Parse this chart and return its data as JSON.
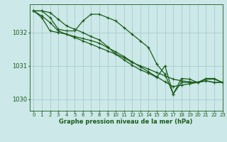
{
  "title": "Graphe pression niveau de la mer (hPa)",
  "background_color": "#cce8e8",
  "grid_color": "#aacccc",
  "line_color": "#1a5c1a",
  "xlim": [
    -0.5,
    23
  ],
  "ylim": [
    1029.65,
    1032.85
  ],
  "yticks": [
    1030,
    1031,
    1032
  ],
  "xticks": [
    0,
    1,
    2,
    3,
    4,
    5,
    6,
    7,
    8,
    9,
    10,
    11,
    12,
    13,
    14,
    15,
    16,
    17,
    18,
    19,
    20,
    21,
    22,
    23
  ],
  "series": [
    [
      1032.65,
      1032.65,
      1032.45,
      1032.1,
      1032.05,
      1032.05,
      1032.35,
      1032.55,
      1032.55,
      1032.45,
      1032.35,
      1032.15,
      1031.95,
      1031.75,
      1031.55,
      1031.05,
      1030.75,
      1030.15,
      1030.5,
      1030.5,
      1030.5,
      1030.6,
      1030.6,
      1030.5
    ],
    [
      1032.65,
      1032.5,
      1032.3,
      1032.05,
      1031.95,
      1031.85,
      1031.75,
      1031.65,
      1031.55,
      1031.45,
      1031.35,
      1031.25,
      1031.1,
      1031.0,
      1030.9,
      1030.8,
      1030.7,
      1030.6,
      1030.55,
      1030.52,
      1030.5,
      1030.55,
      1030.5,
      1030.5
    ],
    [
      1032.65,
      1032.45,
      1032.05,
      1032.0,
      1031.95,
      1031.88,
      1031.82,
      1031.76,
      1031.68,
      1031.55,
      1031.42,
      1031.28,
      1031.12,
      1030.97,
      1030.82,
      1030.67,
      1030.52,
      1030.38,
      1030.42,
      1030.46,
      1030.5,
      1030.55,
      1030.5,
      1030.5
    ],
    [
      1032.65,
      1032.65,
      1032.6,
      1032.4,
      1032.2,
      1032.1,
      1032.0,
      1031.88,
      1031.78,
      1031.58,
      1031.35,
      1031.18,
      1031.02,
      1030.88,
      1030.78,
      1030.65,
      1031.0,
      1030.15,
      1030.62,
      1030.6,
      1030.5,
      1030.62,
      1030.62,
      1030.5
    ]
  ],
  "ylabel_fontsize": 6,
  "xlabel_fontsize": 6,
  "tick_fontsize": 5,
  "linewidth": 0.9,
  "markersize": 2.8
}
